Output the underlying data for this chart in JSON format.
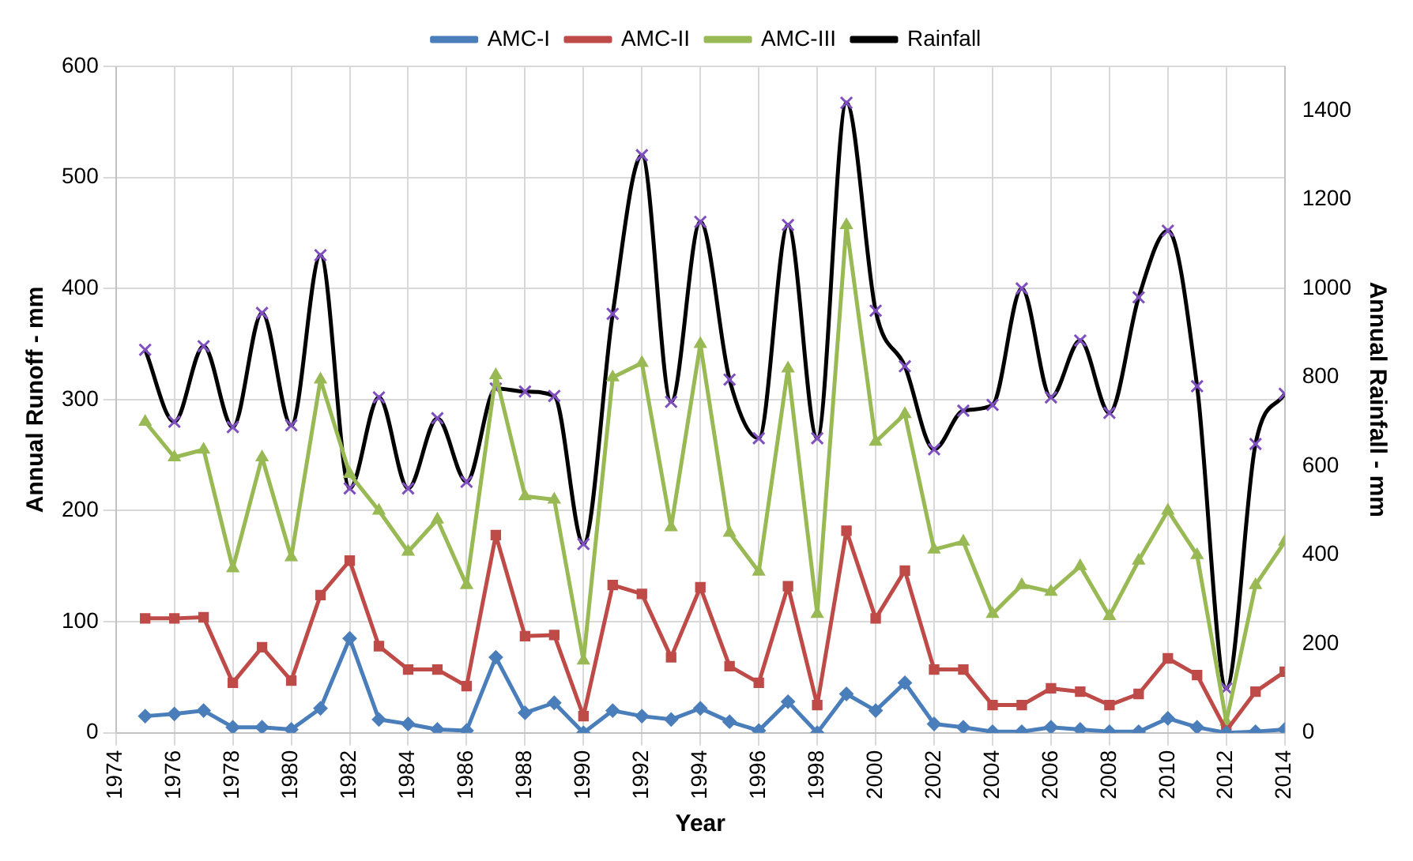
{
  "chart_data": {
    "type": "line",
    "xlabel": "Year",
    "ylabel": "Annual Runoff - mm",
    "y2label": "Annual Rainfall - mm",
    "x": [
      1975,
      1976,
      1977,
      1978,
      1979,
      1980,
      1981,
      1982,
      1983,
      1984,
      1985,
      1986,
      1987,
      1988,
      1989,
      1990,
      1991,
      1992,
      1993,
      1994,
      1995,
      1996,
      1997,
      1998,
      1999,
      2000,
      2001,
      2002,
      2003,
      2004,
      2005,
      2006,
      2007,
      2008,
      2009,
      2010,
      2011,
      2012,
      2013,
      2014
    ],
    "xlim": [
      1974,
      2014
    ],
    "xticks": [
      1974,
      1976,
      1978,
      1980,
      1982,
      1984,
      1986,
      1988,
      1990,
      1992,
      1994,
      1996,
      1998,
      2000,
      2002,
      2004,
      2006,
      2008,
      2010,
      2012,
      2014
    ],
    "ylim": [
      0,
      600
    ],
    "yticks": [
      0,
      100,
      200,
      300,
      400,
      500,
      600
    ],
    "y2lim": [
      0,
      1500
    ],
    "y2ticks": [
      0,
      200,
      400,
      600,
      800,
      1000,
      1200,
      1400
    ],
    "grid": true,
    "legend": "top",
    "series": [
      {
        "name": "AMC-I",
        "color": "#4a7ebb",
        "marker": "diamond",
        "values": [
          15,
          17,
          20,
          5,
          5,
          3,
          22,
          85,
          12,
          8,
          3,
          2,
          68,
          18,
          27,
          0,
          20,
          15,
          12,
          22,
          10,
          2,
          28,
          0,
          35,
          20,
          45,
          8,
          5,
          1,
          1,
          5,
          3,
          1,
          1,
          13,
          5,
          0,
          1,
          3
        ]
      },
      {
        "name": "AMC-II",
        "color": "#be4b48",
        "marker": "square",
        "values": [
          103,
          103,
          104,
          45,
          77,
          47,
          124,
          155,
          78,
          57,
          57,
          42,
          178,
          87,
          88,
          15,
          133,
          125,
          68,
          131,
          60,
          45,
          132,
          25,
          182,
          103,
          146,
          57,
          57,
          25,
          25,
          40,
          37,
          25,
          35,
          67,
          52,
          2,
          37,
          55
        ]
      },
      {
        "name": "AMC-III",
        "color": "#98b954",
        "marker": "triangle",
        "values": [
          280,
          248,
          255,
          148,
          248,
          158,
          318,
          233,
          200,
          163,
          192,
          133,
          322,
          213,
          210,
          65,
          320,
          333,
          185,
          350,
          180,
          145,
          328,
          107,
          457,
          262,
          287,
          165,
          172,
          107,
          133,
          127,
          150,
          105,
          155,
          200,
          160,
          10,
          133,
          172
        ]
      },
      {
        "name": "Rainfall",
        "color": "#000000",
        "marker": "cross",
        "axis": "y2",
        "values": [
          862,
          700,
          870,
          688,
          945,
          692,
          1075,
          550,
          755,
          550,
          708,
          565,
          775,
          768,
          758,
          425,
          943,
          1300,
          745,
          1150,
          795,
          663,
          1143,
          663,
          1418,
          950,
          825,
          638,
          725,
          738,
          1000,
          755,
          883,
          720,
          980,
          1130,
          780,
          100,
          650,
          763
        ]
      }
    ]
  }
}
